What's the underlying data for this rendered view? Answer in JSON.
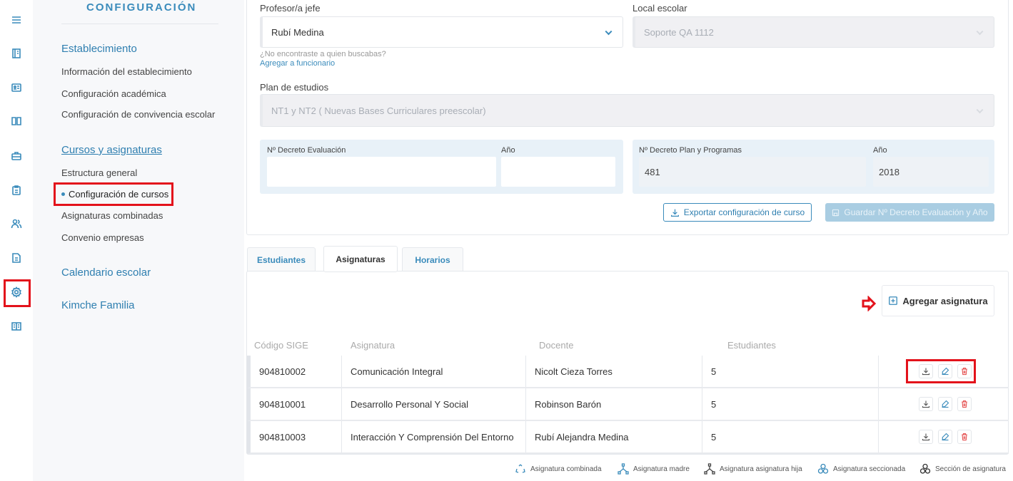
{
  "rail": {
    "items": [
      "menu-icon",
      "notebook-icon",
      "id-card-icon",
      "book-open-icon",
      "briefcase-icon",
      "clipboard-icon",
      "users-icon",
      "document-icon",
      "gear-icon",
      "library-icon"
    ],
    "active": "gear-icon"
  },
  "sidebar": {
    "title": "CONFIGURACIÓN",
    "sections": [
      {
        "label": "Establecimiento",
        "items": [
          "Información del establecimiento",
          "Configuración académica",
          "Configuración de convivencia escolar"
        ]
      },
      {
        "label": "Cursos y asignaturas",
        "items": [
          "Estructura general",
          "Configuración de cursos",
          "Asignaturas combinadas",
          "Convenio empresas"
        ]
      },
      {
        "label": "Calendario escolar",
        "items": []
      },
      {
        "label": "Kimche Familia",
        "items": []
      }
    ],
    "active_item": "Configuración de cursos"
  },
  "form": {
    "profesor_label": "Profesor/a jefe",
    "profesor_value": "Rubí Medina",
    "not_found": "¿No encontraste a quien buscabas?",
    "add_staff_link": "Agregar a funcionario",
    "local_label": "Local escolar",
    "local_value": "Soporte QA 1112",
    "plan_label": "Plan de estudios",
    "plan_value": "NT1 y NT2 ( Nuevas Bases Curriculares preescolar)",
    "decreto_eval_label": "Nº Decreto Evaluación",
    "decreto_eval_value": "",
    "anio_eval_label": "Año",
    "anio_eval_value": "",
    "decreto_plan_label": "Nº Decreto Plan y Programas",
    "decreto_plan_value": "481",
    "anio_plan_label": "Año",
    "anio_plan_value": "2018",
    "export_button": "Exportar configuración de curso",
    "save_button": "Guardar Nº Decreto Evaluación y Año"
  },
  "tabs": [
    {
      "label": "Estudiantes"
    },
    {
      "label": "Asignaturas",
      "active": true
    },
    {
      "label": "Horarios"
    }
  ],
  "add_subject_button": "Agregar asignatura",
  "table": {
    "headers": [
      "Código SIGE",
      "Asignatura",
      "Docente",
      "Estudiantes"
    ],
    "rows": [
      {
        "code": "904810002",
        "subject": "Comunicación Integral",
        "teacher": "Nicolt Cieza Torres",
        "students": "5"
      },
      {
        "code": "904810001",
        "subject": "Desarrollo Personal Y Social",
        "teacher": "Robinson Barón",
        "students": "5"
      },
      {
        "code": "904810003",
        "subject": "Interacción Y Comprensión Del Entorno",
        "teacher": "Rubí Alejandra Medina",
        "students": "5"
      }
    ]
  },
  "legend": [
    "Asignatura combinada",
    "Asignatura madre",
    "Asignatura asignatura hija",
    "Asignatura seccionada",
    "Sección de asignatura"
  ],
  "colors": {
    "accent": "#3a8bbb",
    "highlight": "#e3121b",
    "delete": "#e55353"
  }
}
